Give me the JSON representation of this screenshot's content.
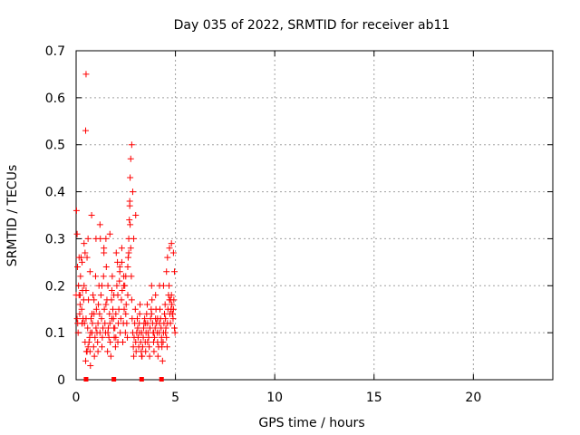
{
  "chart_data": {
    "type": "scatter",
    "title": "Day 035 of 2022, SRMTID for receiver ab11",
    "xlabel": "GPS time / hours",
    "ylabel": "SRMTID / TECUs",
    "xlim": [
      0,
      24
    ],
    "ylim": [
      0,
      0.7
    ],
    "x_ticks": [
      0,
      5,
      10,
      15,
      20
    ],
    "x_tick_labels": [
      "0",
      "5",
      "10",
      "15",
      "20"
    ],
    "y_ticks": [
      0,
      0.1,
      0.2,
      0.3,
      0.4,
      0.5,
      0.6,
      0.7
    ],
    "y_tick_labels": [
      "0",
      "0.1",
      "0.2",
      "0.3",
      "0.4",
      "0.5",
      "0.6",
      "0.7"
    ],
    "grid": true,
    "marker_color": "#ff0000",
    "series": [
      {
        "name": "SRMTID",
        "marker": "plus",
        "x": [
          0.0,
          0.02,
          0.05,
          0.08,
          0.1,
          0.12,
          0.15,
          0.18,
          0.2,
          0.22,
          0.25,
          0.28,
          0.3,
          0.32,
          0.35,
          0.38,
          0.4,
          0.42,
          0.45,
          0.48,
          0.5,
          0.52,
          0.55,
          0.58,
          0.6,
          0.62,
          0.65,
          0.68,
          0.7,
          0.72,
          0.75,
          0.78,
          0.8,
          0.82,
          0.85,
          0.88,
          0.9,
          0.92,
          0.95,
          0.98,
          1.0,
          1.02,
          1.05,
          1.08,
          1.1,
          1.12,
          1.15,
          1.18,
          1.2,
          1.22,
          1.25,
          1.28,
          1.3,
          1.32,
          1.35,
          1.38,
          1.4,
          1.42,
          1.45,
          1.48,
          1.5,
          1.52,
          1.55,
          1.58,
          1.6,
          1.62,
          1.65,
          1.68,
          1.7,
          1.72,
          1.75,
          1.78,
          1.8,
          1.82,
          1.85,
          1.88,
          1.9,
          1.92,
          1.95,
          1.98,
          2.0,
          2.02,
          2.05,
          2.08,
          2.1,
          2.12,
          2.15,
          2.18,
          2.2,
          2.22,
          2.25,
          2.28,
          2.3,
          2.32,
          2.35,
          2.38,
          2.4,
          2.42,
          2.45,
          2.48,
          2.5,
          2.52,
          2.55,
          2.58,
          2.6,
          2.62,
          2.65,
          2.68,
          2.7,
          2.72,
          2.75,
          2.78,
          2.8,
          2.82,
          2.85,
          2.88,
          2.9,
          2.92,
          2.95,
          2.98,
          3.0,
          3.02,
          3.05,
          3.08,
          3.1,
          3.12,
          3.15,
          3.18,
          3.2,
          3.22,
          3.25,
          3.28,
          3.3,
          3.32,
          3.35,
          3.38,
          3.4,
          3.42,
          3.45,
          3.48,
          3.5,
          3.52,
          3.55,
          3.58,
          3.6,
          3.62,
          3.65,
          3.68,
          3.7,
          3.72,
          3.75,
          3.78,
          3.8,
          3.82,
          3.85,
          3.88,
          3.9,
          3.92,
          3.95,
          3.98,
          4.0,
          4.02,
          4.05,
          4.08,
          4.1,
          4.12,
          4.15,
          4.18,
          4.2,
          4.22,
          4.25,
          4.28,
          4.3,
          4.32,
          4.35,
          4.38,
          4.4,
          4.42,
          4.45,
          4.48,
          4.5,
          4.52,
          4.55,
          4.58,
          4.6,
          4.62,
          4.65,
          4.68,
          4.7,
          4.72,
          4.75,
          4.78,
          4.8,
          4.82,
          4.85,
          4.88,
          4.9,
          4.92,
          4.95,
          4.98,
          0.05,
          0.07,
          0.15,
          0.2,
          0.3,
          0.4,
          0.45,
          0.5,
          0.55,
          0.7,
          0.72,
          0.8,
          1.0,
          1.2,
          1.4,
          1.5,
          1.6,
          1.7,
          1.8,
          2.1,
          2.2,
          2.3,
          2.4,
          2.5,
          2.6,
          2.65,
          2.7,
          2.72,
          2.75,
          2.8,
          2.85,
          2.9,
          3.0,
          3.2,
          3.5,
          3.8,
          4.0,
          4.2,
          4.5,
          4.6,
          4.7,
          4.8,
          4.9,
          0.3,
          0.6,
          0.9,
          1.1,
          1.3,
          1.9,
          2.0,
          3.3,
          3.6,
          3.9,
          4.1,
          4.3,
          4.4,
          4.55,
          4.75,
          4.85,
          4.95,
          0.48,
          0.5
        ],
        "y": [
          0.18,
          0.36,
          0.31,
          0.12,
          0.1,
          0.2,
          0.26,
          0.14,
          0.18,
          0.22,
          0.26,
          0.15,
          0.12,
          0.19,
          0.13,
          0.17,
          0.29,
          0.12,
          0.08,
          0.04,
          0.13,
          0.06,
          0.26,
          0.11,
          0.3,
          0.17,
          0.08,
          0.09,
          0.06,
          0.03,
          0.13,
          0.35,
          0.1,
          0.12,
          0.18,
          0.07,
          0.14,
          0.05,
          0.09,
          0.22,
          0.11,
          0.15,
          0.1,
          0.08,
          0.06,
          0.16,
          0.2,
          0.14,
          0.1,
          0.3,
          0.18,
          0.13,
          0.07,
          0.09,
          0.11,
          0.22,
          0.28,
          0.15,
          0.12,
          0.1,
          0.3,
          0.24,
          0.17,
          0.06,
          0.2,
          0.11,
          0.09,
          0.14,
          0.12,
          0.08,
          0.05,
          0.17,
          0.19,
          0.22,
          0.15,
          0.13,
          0.18,
          0.09,
          0.11,
          0.07,
          0.14,
          0.27,
          0.2,
          0.25,
          0.18,
          0.12,
          0.15,
          0.21,
          0.23,
          0.1,
          0.13,
          0.17,
          0.25,
          0.19,
          0.08,
          0.12,
          0.22,
          0.15,
          0.2,
          0.1,
          0.14,
          0.16,
          0.12,
          0.09,
          0.18,
          0.26,
          0.3,
          0.34,
          0.37,
          0.33,
          0.28,
          0.22,
          0.17,
          0.13,
          0.1,
          0.07,
          0.05,
          0.09,
          0.12,
          0.15,
          0.08,
          0.06,
          0.1,
          0.13,
          0.11,
          0.09,
          0.07,
          0.12,
          0.14,
          0.16,
          0.08,
          0.06,
          0.1,
          0.05,
          0.07,
          0.09,
          0.11,
          0.12,
          0.13,
          0.08,
          0.06,
          0.1,
          0.14,
          0.16,
          0.12,
          0.1,
          0.09,
          0.07,
          0.05,
          0.11,
          0.13,
          0.15,
          0.2,
          0.17,
          0.12,
          0.1,
          0.08,
          0.06,
          0.09,
          0.11,
          0.13,
          0.15,
          0.12,
          0.1,
          0.08,
          0.05,
          0.07,
          0.1,
          0.12,
          0.15,
          0.13,
          0.11,
          0.09,
          0.07,
          0.04,
          0.08,
          0.1,
          0.12,
          0.14,
          0.16,
          0.13,
          0.11,
          0.09,
          0.07,
          0.12,
          0.15,
          0.18,
          0.2,
          0.17,
          0.14,
          0.12,
          0.15,
          0.18,
          0.16,
          0.14,
          0.13,
          0.15,
          0.17,
          0.11,
          0.1,
          0.13,
          0.24,
          0.18,
          0.16,
          0.12,
          0.2,
          0.27,
          0.19,
          0.06,
          0.23,
          0.1,
          0.14,
          0.3,
          0.33,
          0.27,
          0.16,
          0.1,
          0.31,
          0.13,
          0.08,
          0.24,
          0.28,
          0.2,
          0.22,
          0.24,
          0.27,
          0.38,
          0.43,
          0.47,
          0.5,
          0.4,
          0.3,
          0.35,
          0.1,
          0.12,
          0.14,
          0.18,
          0.2,
          0.1,
          0.26,
          0.28,
          0.29,
          0.27,
          0.25,
          0.07,
          0.17,
          0.12,
          0.2,
          0.11,
          0.09,
          0.05,
          0.08,
          0.1,
          0.13,
          0.08,
          0.2,
          0.23,
          0.17,
          0.14,
          0.23,
          0.53,
          0.65
        ]
      }
    ],
    "axis_markers_x": [
      0.5,
      1.9,
      3.3,
      4.3
    ]
  }
}
